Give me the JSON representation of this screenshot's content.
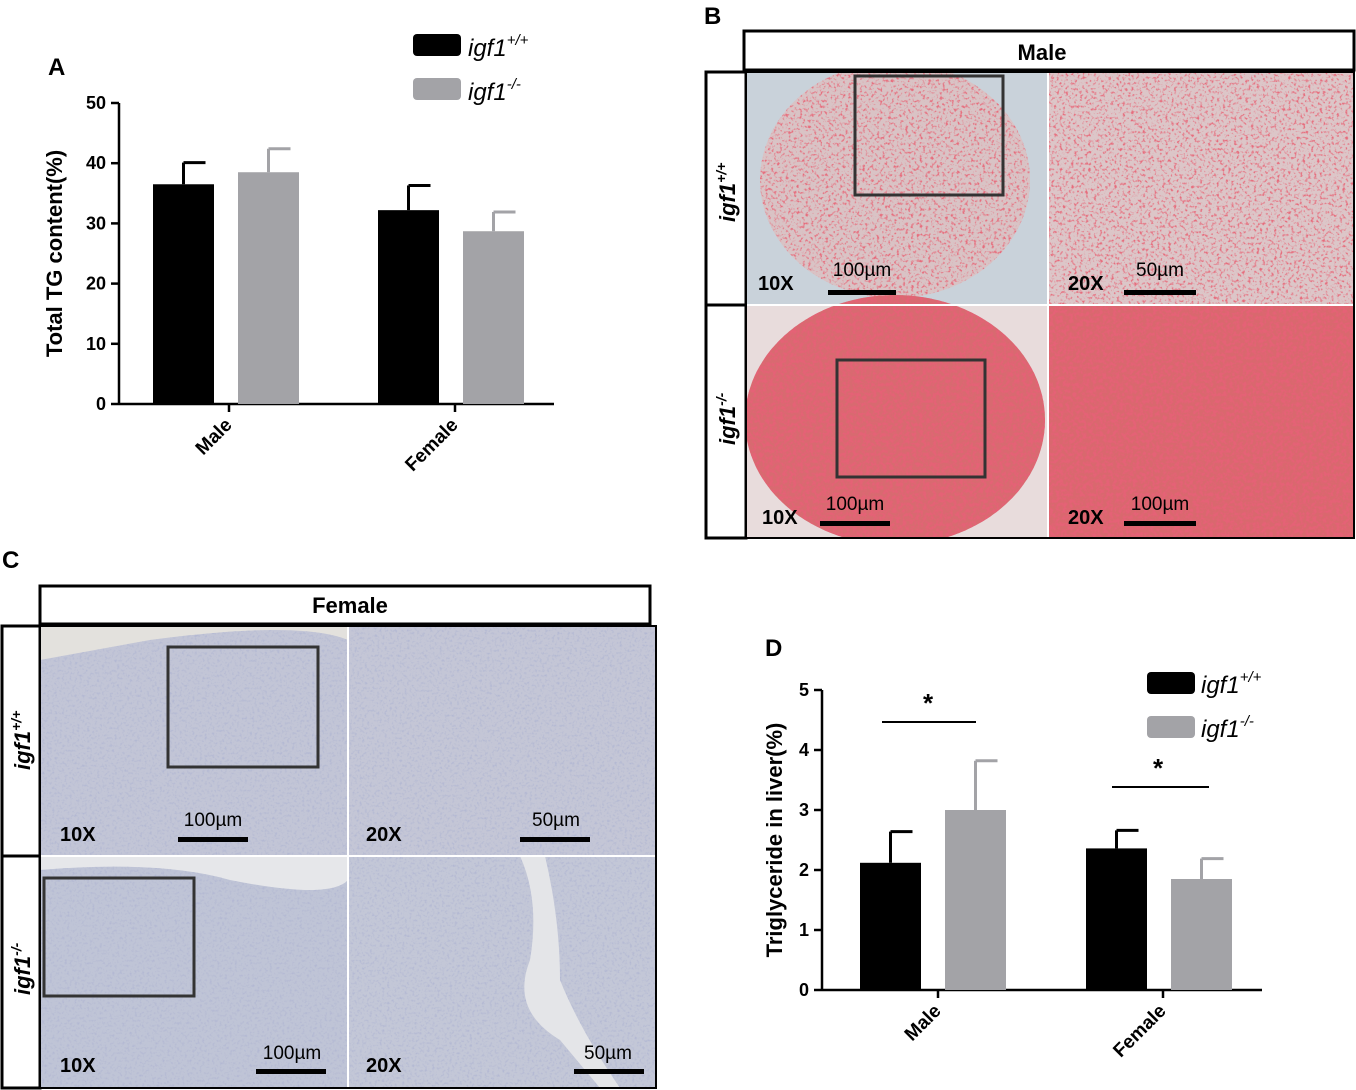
{
  "colors": {
    "wt": "#000000",
    "ko": "#a3a3a7",
    "oil_red_dense": "#d2444d",
    "oil_red_light": "#c98a90",
    "tissue_pale": "#dcdfe6",
    "tissue_blue": "#b9bdd2",
    "slide_bg": "#c8d0d8"
  },
  "panel_a": {
    "letter": "A",
    "legend": [
      {
        "base": "igf1",
        "sup": "+/+"
      },
      {
        "base": "igf1",
        "sup": "-/-"
      }
    ]
  },
  "panel_b": {
    "letter": "B",
    "header": "Male",
    "rows": [
      {
        "base": "igf1",
        "sup": "+/+"
      },
      {
        "base": "igf1",
        "sup": "-/-"
      }
    ],
    "mag_left": "10X",
    "mag_right": "20X",
    "scale_top_left": "100µm",
    "scale_top_right": "50µm",
    "scale_bottom_left": "100µm",
    "scale_bottom_right": "100µm",
    "stain": "oil-red"
  },
  "panel_c": {
    "letter": "C",
    "header": "Female",
    "rows": [
      {
        "base": "igf1",
        "sup": "+/+"
      },
      {
        "base": "igf1",
        "sup": "-/-"
      }
    ],
    "mag_left": "10X",
    "mag_right": "20X",
    "scale_top_left": "100µm",
    "scale_top_right": "50µm",
    "scale_bottom_left": "100µm",
    "scale_bottom_right": "50µm",
    "stain": "pale-blue"
  },
  "panel_d": {
    "letter": "D",
    "legend": [
      {
        "base": "igf1",
        "sup": "+/+"
      },
      {
        "base": "igf1",
        "sup": "-/-"
      }
    ],
    "significance": [
      "*",
      "*"
    ]
  },
  "chart_data": [
    {
      "type": "bar",
      "categories": [
        "Male",
        "Female"
      ],
      "series": [
        {
          "name": "igf1+/+",
          "values": [
            36.5,
            32.2
          ],
          "errors": [
            3.6,
            4.1
          ]
        },
        {
          "name": "igf1-/-",
          "values": [
            38.5,
            28.7
          ],
          "errors": [
            3.9,
            3.2
          ]
        }
      ],
      "ylabel": "Total TG content(%)",
      "ylim": [
        0,
        50
      ],
      "yticks": [
        0,
        10,
        20,
        30,
        40,
        50
      ],
      "grid": false,
      "legend": "top"
    },
    {
      "type": "bar",
      "categories": [
        "Male",
        "Female"
      ],
      "series": [
        {
          "name": "igf1+/+",
          "values": [
            2.12,
            2.36
          ],
          "errors": [
            0.52,
            0.3
          ]
        },
        {
          "name": "igf1-/-",
          "values": [
            3.0,
            1.85
          ],
          "errors": [
            0.82,
            0.34
          ]
        }
      ],
      "ylabel": "Triglyceride in liver(%)",
      "ylim": [
        0,
        5
      ],
      "yticks": [
        0,
        1,
        2,
        3,
        4,
        5
      ],
      "grid": false,
      "legend": "top-right",
      "annotations": [
        "*",
        "*"
      ]
    }
  ]
}
